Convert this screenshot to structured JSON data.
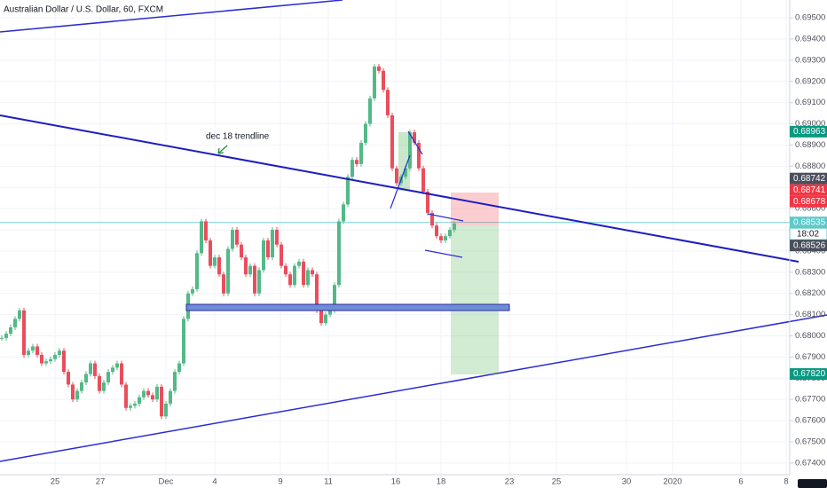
{
  "chart_data": {
    "type": "candlestick",
    "title": "Australian Dollar / U.S. Dollar, 60, FXCM",
    "annotation": "dec 18 trendline",
    "up_color": "#53b987",
    "down_color": "#eb4d5c",
    "grid": true,
    "values": [
      0.6799,
      0.6801,
      0.6804,
      0.6808,
      0.6812,
      0.6791,
      0.6793,
      0.6795,
      0.6791,
      0.6787,
      0.6788,
      0.6789,
      0.6791,
      0.6793,
      0.6783,
      0.6777,
      0.677,
      0.6774,
      0.6778,
      0.6782,
      0.6787,
      0.6781,
      0.6774,
      0.6778,
      0.6783,
      0.6785,
      0.6787,
      0.6777,
      0.6766,
      0.6767,
      0.6768,
      0.6771,
      0.6774,
      0.6772,
      0.677,
      0.6776,
      0.6762,
      0.6768,
      0.6774,
      0.6783,
      0.6787,
      0.6808,
      0.682,
      0.6822,
      0.6839,
      0.6854,
      0.6845,
      0.6833,
      0.6837,
      0.6829,
      0.682,
      0.6841,
      0.685,
      0.6843,
      0.6837,
      0.6829,
      0.6833,
      0.682,
      0.6831,
      0.6845,
      0.6837,
      0.685,
      0.6843,
      0.6833,
      0.6829,
      0.6824,
      0.6833,
      0.6835,
      0.6824,
      0.6831,
      0.6829,
      0.6812,
      0.6806,
      0.681,
      0.6812,
      0.6824,
      0.6854,
      0.6862,
      0.6875,
      0.6883,
      0.6881,
      0.6891,
      0.69,
      0.6912,
      0.6927,
      0.6925,
      0.6916,
      0.6904,
      0.6879,
      0.6872,
      0.6875,
      0.6879,
      0.6896,
      0.6891,
      0.6879,
      0.6868,
      0.6858,
      0.6852,
      0.6847,
      0.6845,
      0.6847,
      0.685,
      0.6853
    ],
    "ylim": [
      0.67345,
      0.69584
    ],
    "yticks": [
      {
        "value": 0.695,
        "label": "0.69500"
      },
      {
        "value": 0.694,
        "label": "0.69400"
      },
      {
        "value": 0.693,
        "label": "0.69300"
      },
      {
        "value": 0.692,
        "label": "0.69200"
      },
      {
        "value": 0.691,
        "label": "0.69100"
      },
      {
        "value": 0.69,
        "label": "0.69000"
      },
      {
        "value": 0.689,
        "label": "0.68900"
      },
      {
        "value": 0.688,
        "label": "0.68800"
      },
      {
        "value": 0.687,
        "label": "0.68700"
      },
      {
        "value": 0.686,
        "label": "0.68600"
      },
      {
        "value": 0.685,
        "label": "0.68500"
      },
      {
        "value": 0.684,
        "label": "0.68400"
      },
      {
        "value": 0.683,
        "label": "0.68300"
      },
      {
        "value": 0.682,
        "label": "0.68200"
      },
      {
        "value": 0.681,
        "label": "0.68100"
      },
      {
        "value": 0.68,
        "label": "0.68000"
      },
      {
        "value": 0.679,
        "label": "0.67900"
      },
      {
        "value": 0.678,
        "label": "0.67800"
      },
      {
        "value": 0.677,
        "label": "0.67700"
      },
      {
        "value": 0.676,
        "label": "0.67600"
      },
      {
        "value": 0.675,
        "label": "0.67500"
      },
      {
        "value": 0.674,
        "label": "0.67400"
      }
    ],
    "price_labels": [
      {
        "value": 0.68963,
        "label": "0.68963",
        "color": "#089981"
      },
      {
        "value": 0.68742,
        "label": "0.68742",
        "color": "#4a4f5c"
      },
      {
        "value": 0.68741,
        "label": "0.68741",
        "color": "#f23645"
      },
      {
        "value": 0.68678,
        "label": "0.68678",
        "color": "#f23645"
      },
      {
        "value": 0.68535,
        "label": "0.68535",
        "color": "#5fc9c9"
      },
      {
        "value": 0.68526,
        "label": "0.68526",
        "color": "#4a4f5c"
      },
      {
        "value": 0.6782,
        "label": "0.67820",
        "color": "#089981"
      }
    ],
    "countdown": "18:02",
    "x_labels": [
      "25",
      "27",
      "Dec",
      "4",
      "9",
      "11",
      "16",
      "18",
      "23",
      "25",
      "30",
      "2020",
      "6",
      "8"
    ]
  }
}
